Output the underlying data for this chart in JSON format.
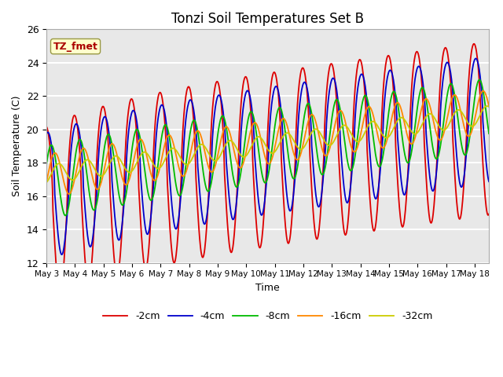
{
  "title": "Tonzi Soil Temperatures Set B",
  "xlabel": "Time",
  "ylabel": "Soil Temperature (C)",
  "ylim": [
    12,
    26
  ],
  "xlim_days": [
    0,
    15.5
  ],
  "x_tick_labels": [
    "May 3",
    "May 4",
    "May 5",
    "May 6",
    "May 7",
    "May 8",
    "May 9",
    "May 10",
    "May 11",
    "May 12",
    "May 13",
    "May 14",
    "May 15",
    "May 16",
    "May 17",
    "May 18"
  ],
  "legend_labels": [
    "-2cm",
    "-4cm",
    "-8cm",
    "-16cm",
    "-32cm"
  ],
  "line_colors": [
    "#dd0000",
    "#0000cc",
    "#00bb00",
    "#ff8800",
    "#cccc00"
  ],
  "annotation_text": "TZ_fmet",
  "annotation_color": "#aa0000",
  "annotation_bg": "#ffffcc",
  "plot_bg": "#e8e8e8",
  "n_points": 960
}
